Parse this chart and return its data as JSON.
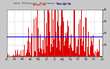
{
  "title": "Solar PV/Inverter Performance West Array",
  "title2": "Actual & Average Power Output",
  "bg_color": "#c8c8c8",
  "plot_bg_color": "#ffffff",
  "bar_color": "#dd0000",
  "avg_line_color": "#0000dd",
  "avg_line_value": 0.42,
  "ylim": [
    0,
    1.0
  ],
  "num_points": 400,
  "ytick_labels": [
    "1k",
    "2k",
    "3k",
    "4k"
  ],
  "ytick_vals": [
    0.25,
    0.5,
    0.75,
    1.0
  ]
}
